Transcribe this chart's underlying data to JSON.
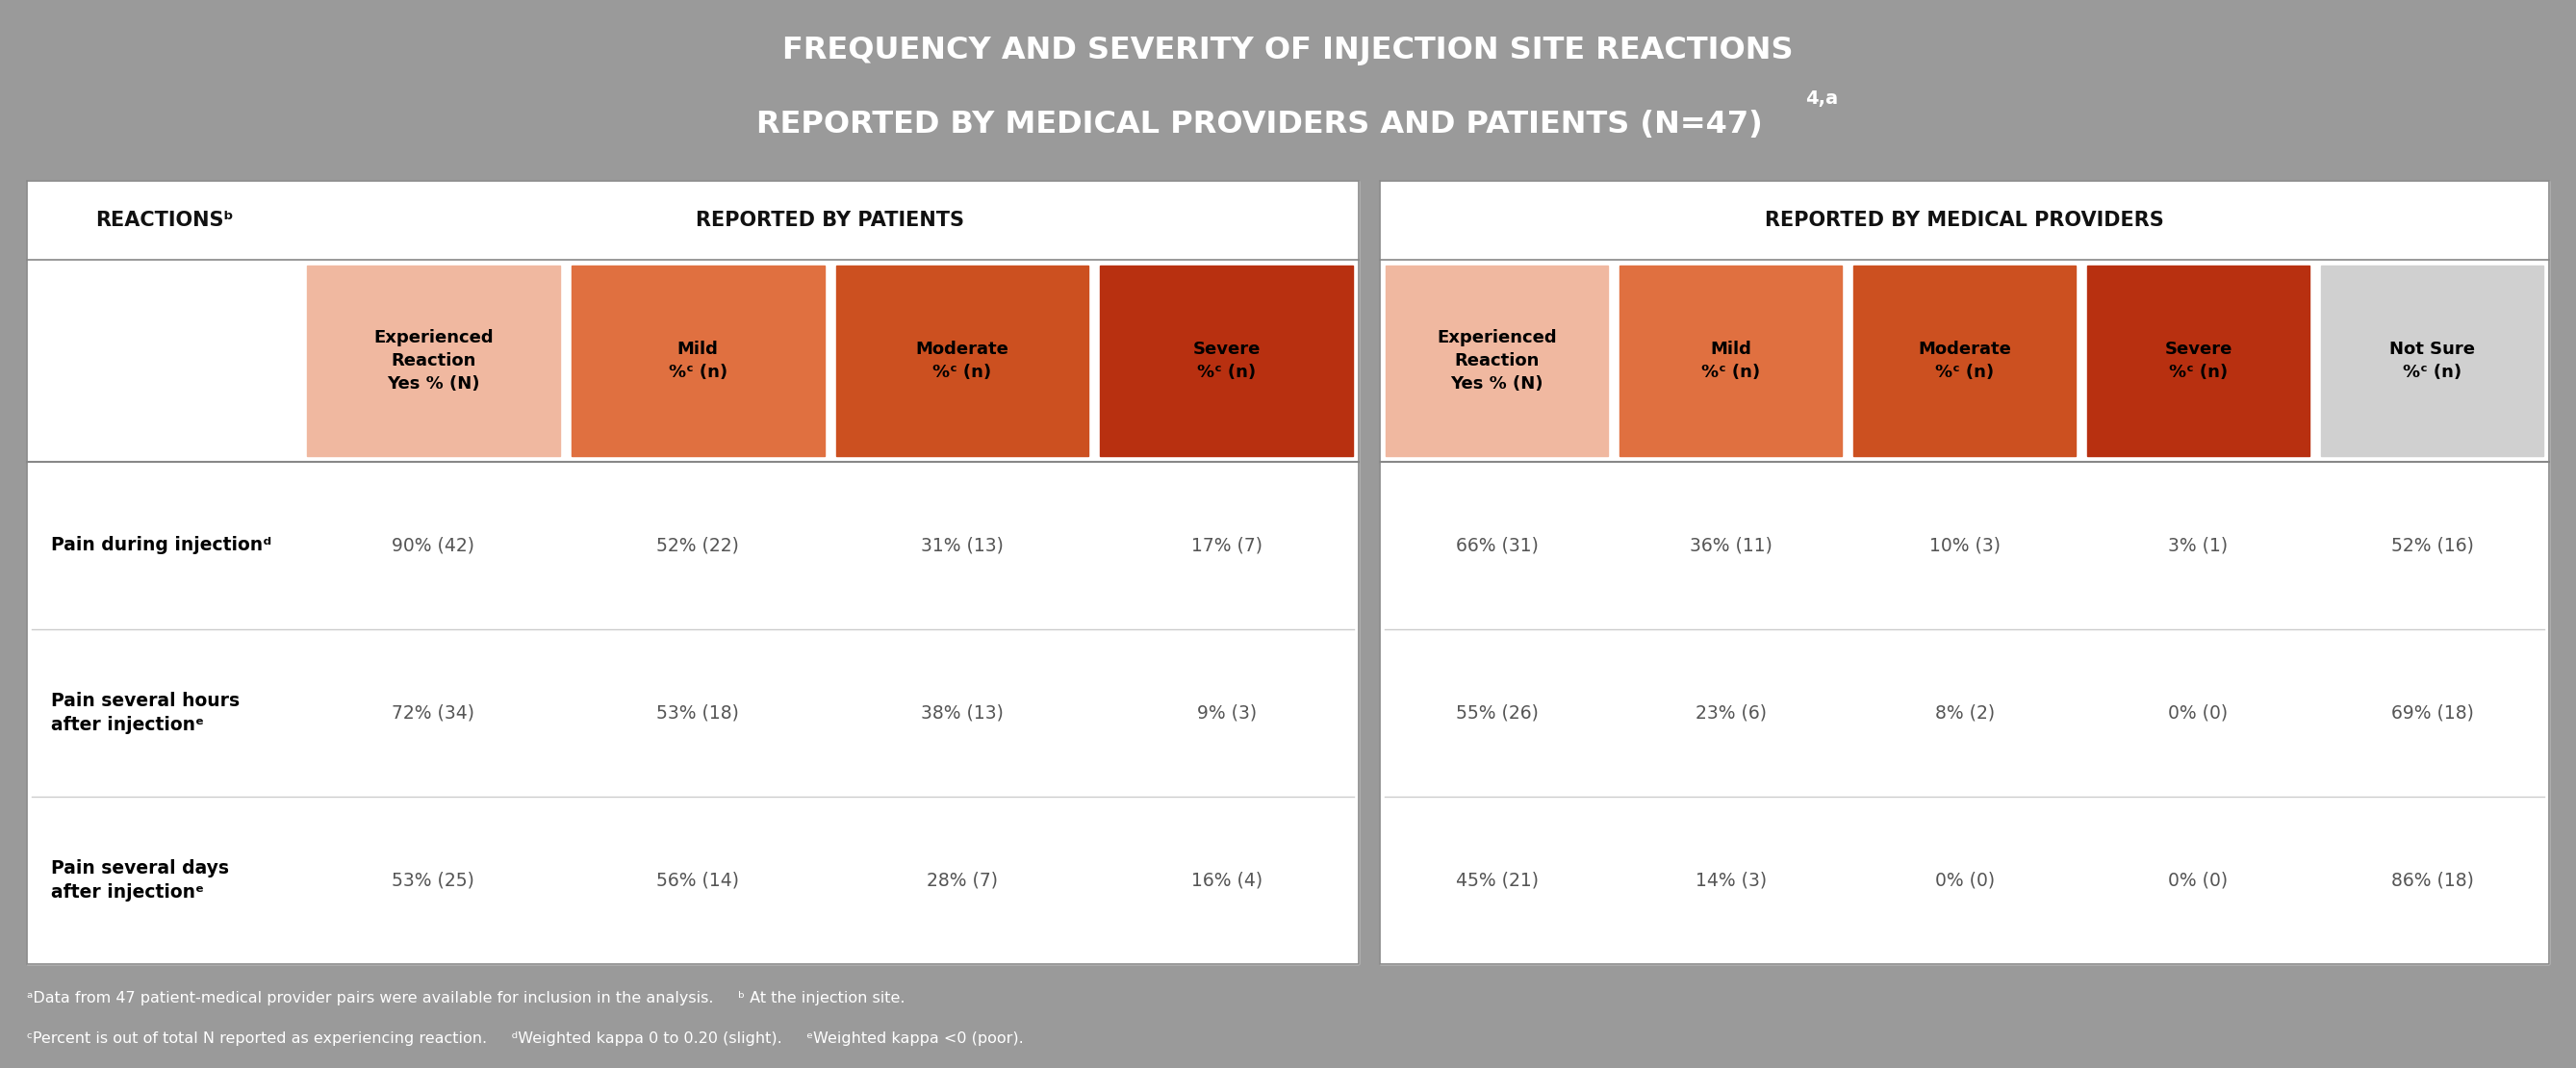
{
  "title_line1": "FREQUENCY AND SEVERITY OF INJECTION SITE REACTIONS",
  "title_line2": "REPORTED BY MEDICAL PROVIDERS AND PATIENTS (N=47)",
  "title_superscript": "4,a",
  "bg_color": "#9a9a9a",
  "table_bg": "#ffffff",
  "header_section1": "REPORTED BY PATIENTS",
  "header_section2": "REPORTED BY MEDICAL PROVIDERS",
  "col_headers_patients": [
    "Experienced\nReaction\nYes % (N)",
    "Mild\n%ᶜ (n)",
    "Moderate\n%ᶜ (n)",
    "Severe\n%ᶜ (n)"
  ],
  "col_headers_providers": [
    "Experienced\nReaction\nYes % (N)",
    "Mild\n%ᶜ (n)",
    "Moderate\n%ᶜ (n)",
    "Severe\n%ᶜ (n)",
    "Not Sure\n%ᶜ (n)"
  ],
  "col_colors_patients": [
    "#f0b8a0",
    "#e07040",
    "#cc5020",
    "#b83010"
  ],
  "col_colors_providers": [
    "#f0b8a0",
    "#e07040",
    "#cc5020",
    "#b83010",
    "#d0d0d0"
  ],
  "row_label_col": "REACTIONSᵇ",
  "rows": [
    {
      "label": "Pain during injectionᵈ",
      "patient_data": [
        "90% (42)",
        "52% (22)",
        "31% (13)",
        "17% (7)"
      ],
      "provider_data": [
        "66% (31)",
        "36% (11)",
        "10% (3)",
        "3% (1)",
        "52% (16)"
      ]
    },
    {
      "label": "Pain several hours\nafter injectionᵉ",
      "patient_data": [
        "72% (34)",
        "53% (18)",
        "38% (13)",
        "9% (3)"
      ],
      "provider_data": [
        "55% (26)",
        "23% (6)",
        "8% (2)",
        "0% (0)",
        "69% (18)"
      ]
    },
    {
      "label": "Pain several days\nafter injectionᵉ",
      "patient_data": [
        "53% (25)",
        "56% (14)",
        "28% (7)",
        "16% (4)"
      ],
      "provider_data": [
        "45% (21)",
        "14% (3)",
        "0% (0)",
        "0% (0)",
        "86% (18)"
      ]
    }
  ],
  "footnote1": "ᵃData from 47 patient-medical provider pairs were available for inclusion in the analysis.     ᵇ At the injection site.",
  "footnote2": "ᶜPercent is out of total N reported as experiencing reaction.     ᵈWeighted kappa 0 to 0.20 (slight).     ᵉWeighted kappa <0 (poor).",
  "data_text_color": "#555555",
  "header_text_color": "#111111",
  "divider_color": "#888888",
  "row_line_color": "#cccccc"
}
